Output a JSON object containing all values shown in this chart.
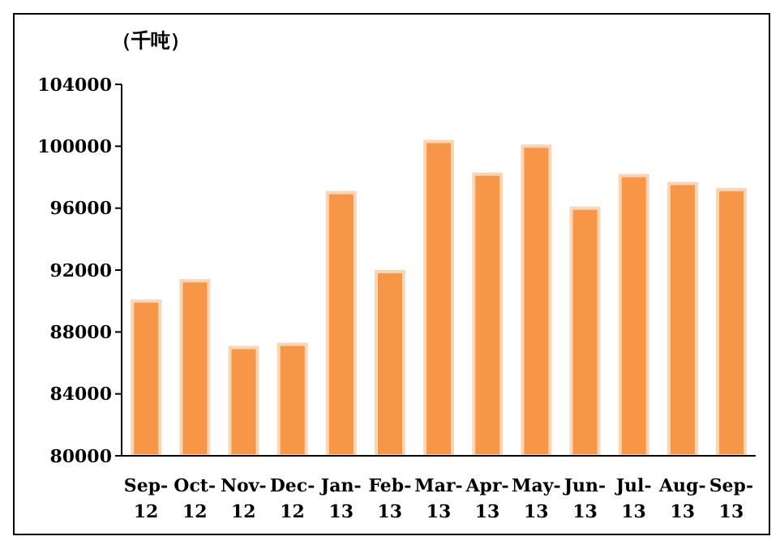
{
  "chart_data": {
    "type": "bar",
    "ylabel": "（千吨）",
    "categories": [
      "Sep-12",
      "Oct-12",
      "Nov-12",
      "Dec-12",
      "Jan-13",
      "Feb-13",
      "Mar-13",
      "Apr-13",
      "May-13",
      "Jun-13",
      "Jul-13",
      "Aug-13",
      "Sep-13"
    ],
    "values": [
      90000,
      91300,
      87000,
      87200,
      97000,
      91900,
      100300,
      98200,
      100000,
      96000,
      98100,
      97600,
      97200
    ],
    "color": "#f79646",
    "ylim": [
      80000,
      104000
    ],
    "yticks": [
      80000,
      84000,
      88000,
      92000,
      96000,
      100000,
      104000
    ],
    "grid": false
  }
}
